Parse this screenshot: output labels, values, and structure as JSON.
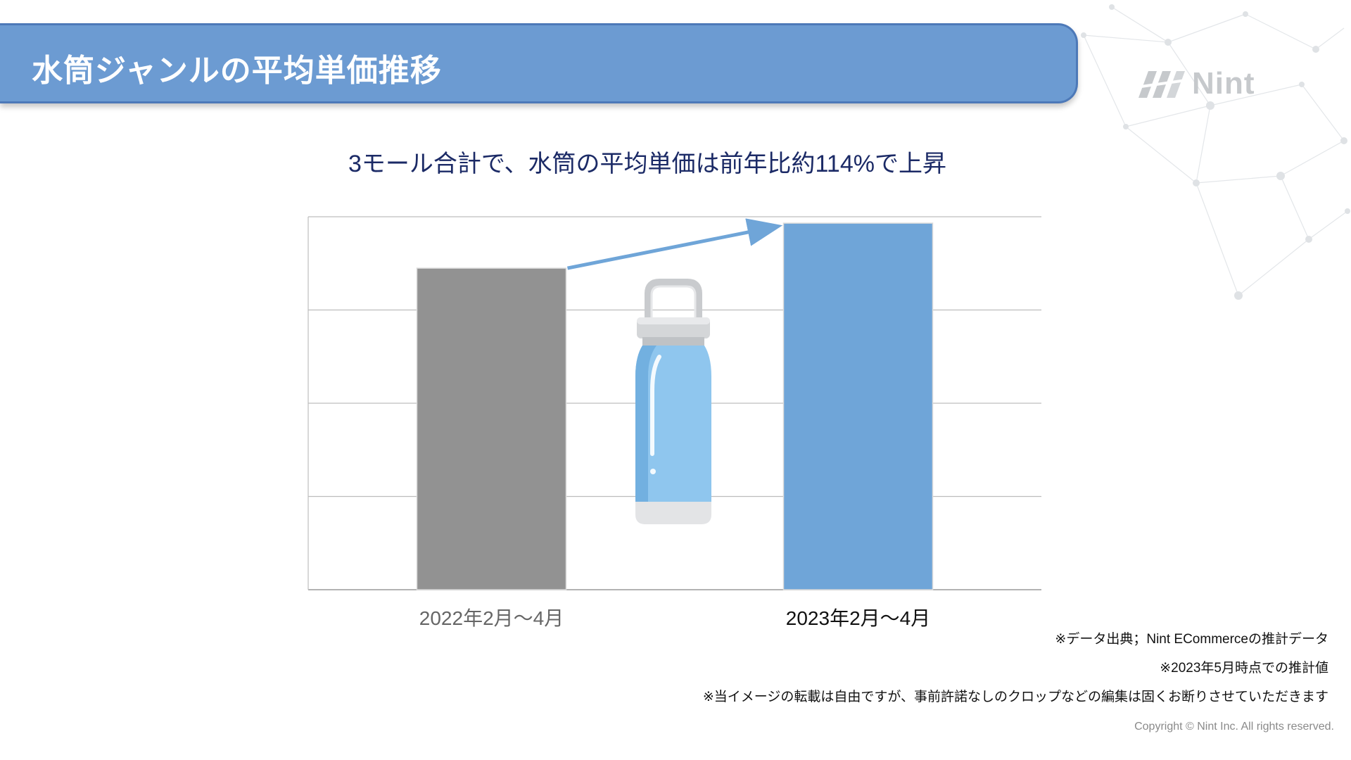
{
  "header": {
    "title": "水筒ジャンルの平均単価推移"
  },
  "logo": {
    "text": "Nint"
  },
  "subtitle": "3モール合計で、水筒の平均単価は前年比約114%で上昇",
  "chart_data": {
    "type": "bar",
    "categories": [
      "2022年2月〜4月",
      "2023年2月〜4月"
    ],
    "values": [
      100,
      114
    ],
    "title": "",
    "xlabel": "",
    "ylabel": "",
    "ylim": [
      0,
      116
    ],
    "grid": true,
    "annotations": [
      "arrow from first bar to second bar indicating increase"
    ],
    "colors": [
      "#929292",
      "#6fa5d8"
    ],
    "tick_label_colors": [
      "#666666",
      "#111111"
    ]
  },
  "illustration": {
    "icon": "water-bottle-icon"
  },
  "notes": [
    "※データ出典；Nint ECommerceの推計データ",
    "※2023年5月時点での推計値",
    "※当イメージの転載は自由ですが、事前許諾なしのクロップなどの編集は固くお断りさせていただきます"
  ],
  "copyright": "Copyright © Nint Inc. All rights reserved.",
  "colors": {
    "banner": "#6c9bd2",
    "accent_arrow": "#6fa5d8",
    "subtitle_text": "#1b2a66"
  }
}
